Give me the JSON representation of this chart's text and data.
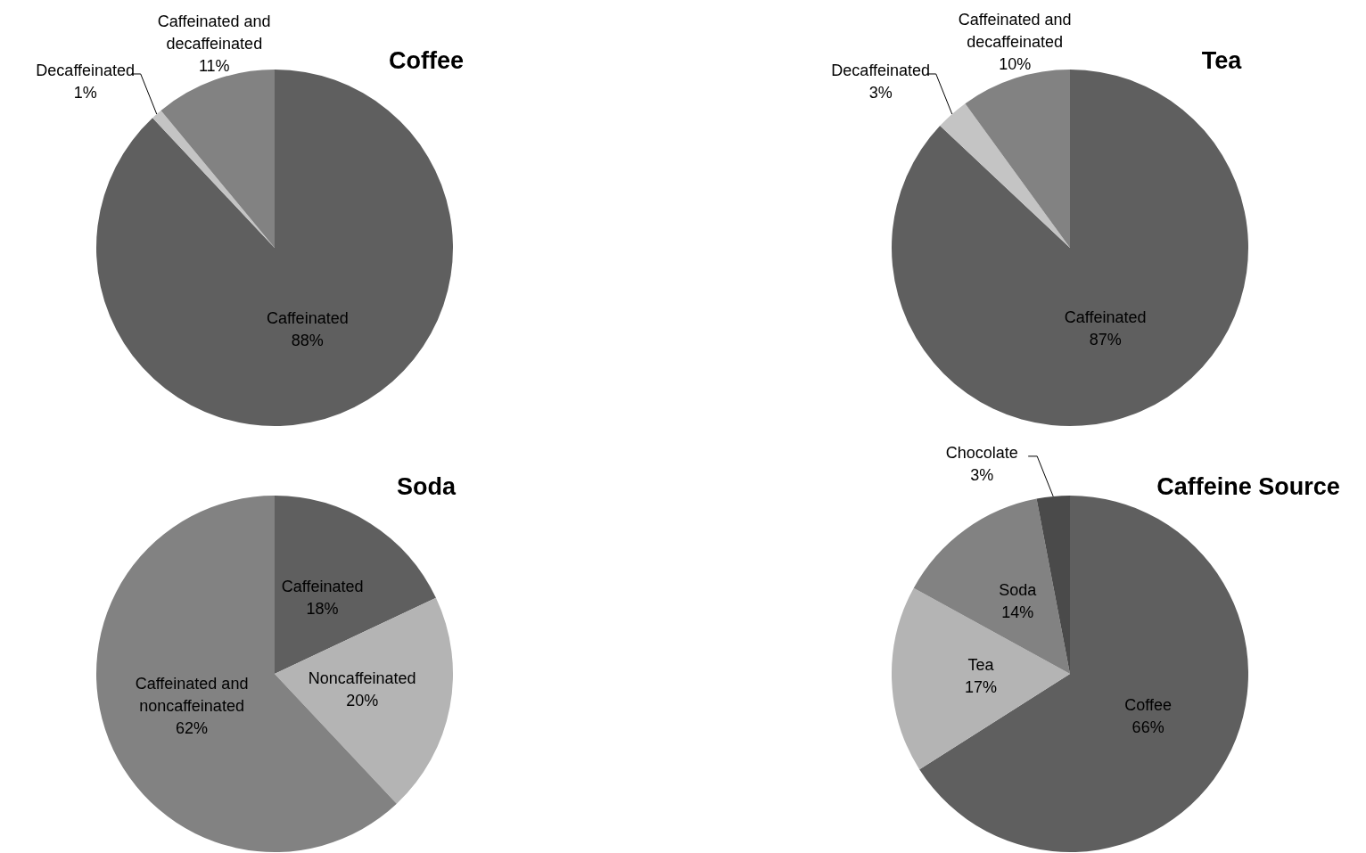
{
  "chart_data": [
    {
      "type": "pie",
      "title": "Coffee",
      "categories": [
        "Caffeinated",
        "Decaffeinated",
        "Caffeinated and decaffeinated"
      ],
      "values": [
        88,
        1,
        11
      ],
      "value_labels": [
        "88%",
        "1%",
        "11%"
      ],
      "colors": [
        "#5f5f5f",
        "#c4c4c4",
        "#828282"
      ]
    },
    {
      "type": "pie",
      "title": "Tea",
      "categories": [
        "Caffeinated",
        "Decaffeinated",
        "Caffeinated and decaffeinated"
      ],
      "values": [
        87,
        3,
        10
      ],
      "value_labels": [
        "87%",
        "3%",
        "10%"
      ],
      "colors": [
        "#5f5f5f",
        "#c4c4c4",
        "#828282"
      ]
    },
    {
      "type": "pie",
      "title": "Soda",
      "categories": [
        "Caffeinated",
        "Noncaffeinated",
        "Caffeinated and noncaffeinated"
      ],
      "values": [
        18,
        20,
        62
      ],
      "value_labels": [
        "18%",
        "20%",
        "62%"
      ],
      "colors": [
        "#5f5f5f",
        "#b4b4b4",
        "#828282"
      ]
    },
    {
      "type": "pie",
      "title": "Caffeine Source",
      "categories": [
        "Coffee",
        "Tea",
        "Soda",
        "Chocolate"
      ],
      "values": [
        66,
        17,
        14,
        3
      ],
      "value_labels": [
        "66%",
        "17%",
        "14%",
        "3%"
      ],
      "colors": [
        "#5f5f5f",
        "#b4b4b4",
        "#828282",
        "#4a4a4a"
      ]
    }
  ]
}
